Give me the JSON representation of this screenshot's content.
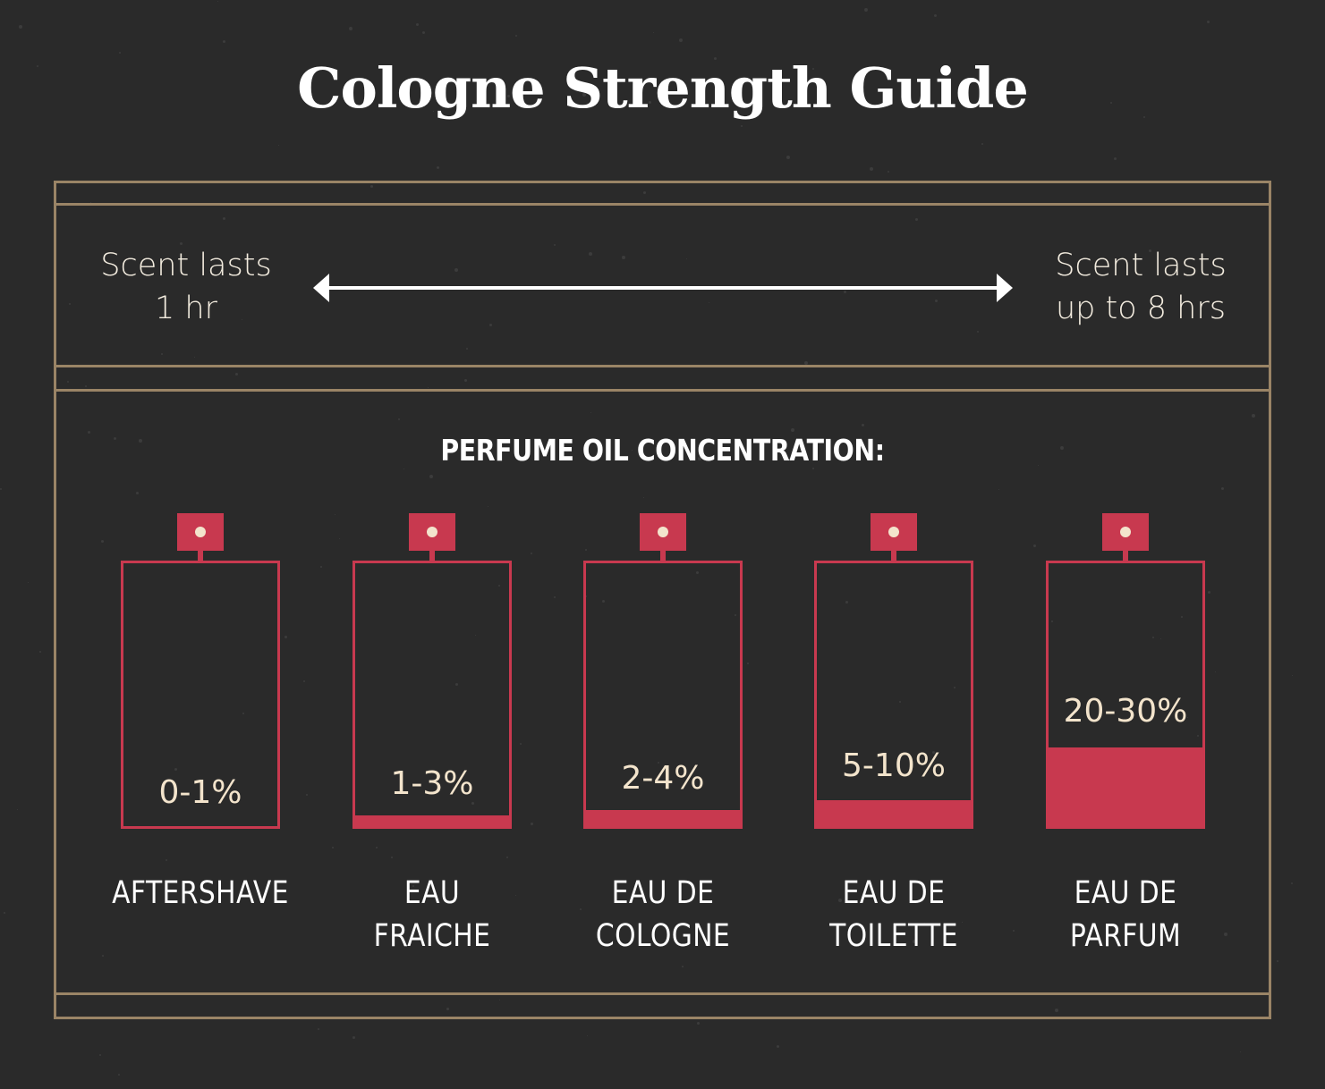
{
  "title": "Cologne Strength Guide",
  "duration_scale": {
    "left_label": [
      "Scent lasts",
      "1 hr"
    ],
    "right_label": [
      "Scent lasts",
      "up to 8 hrs"
    ]
  },
  "concentration_heading": "PERFUME OIL CONCENTRATION:",
  "colors": {
    "background": "#2a2a2a",
    "frame": "#9a8466",
    "bottle": "#c8394f",
    "percent_text": "#f3e4cc",
    "text": "#ffffff"
  },
  "bottles": [
    {
      "name": [
        "AFTERSHAVE"
      ],
      "concentration": "0-1%",
      "fill_fraction": 0.0
    },
    {
      "name": [
        "EAU",
        "FRAICHE"
      ],
      "concentration": "1-3%",
      "fill_fraction": 0.04
    },
    {
      "name": [
        "EAU DE",
        "COLOGNE"
      ],
      "concentration": "2-4%",
      "fill_fraction": 0.06
    },
    {
      "name": [
        "EAU DE",
        "TOILETTE"
      ],
      "concentration": "5-10%",
      "fill_fraction": 0.1
    },
    {
      "name": [
        "EAU DE",
        "PARFUM"
      ],
      "concentration": "20-30%",
      "fill_fraction": 0.3
    }
  ]
}
